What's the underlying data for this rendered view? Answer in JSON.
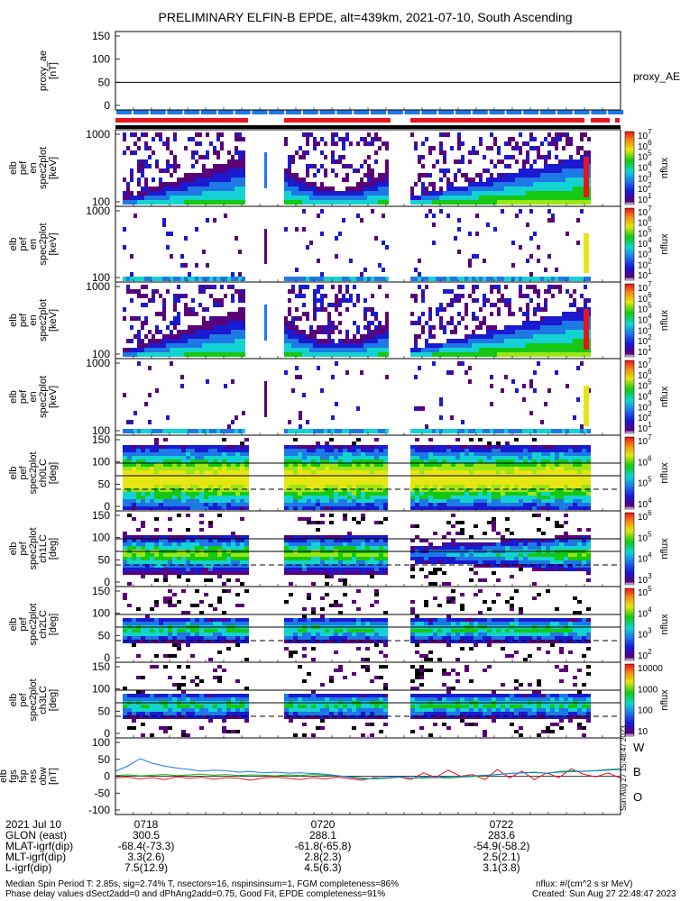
{
  "title": "PRELIMINARY ELFIN-B EPDE, alt=439km, 2021-07-10, South Ascending",
  "colors": {
    "red": "#e8141c",
    "blue": "#1e78e6",
    "green": "#14b414",
    "black": "#000000"
  },
  "panels": [
    {
      "id": "proxy_ae",
      "ylabel": [
        "proxy_ae",
        "[nT]"
      ],
      "yticks": [
        "150",
        "100",
        "50",
        "0"
      ],
      "side_label": "proxy_AE",
      "ref_line": 50
    },
    {
      "id": "en0",
      "ylabel": [
        "elb",
        "pef",
        "en",
        "spec2plot",
        "[keV]"
      ],
      "yticks": [
        "1000",
        "100"
      ],
      "cb_label": "nflux",
      "cb_ticks": [
        "10^7",
        "10^6",
        "10^5",
        "10^4",
        "10^3",
        "10^2",
        "10^1"
      ]
    },
    {
      "id": "en1",
      "ylabel": [
        "elb",
        "pef",
        "en",
        "spec2plot",
        "[keV]"
      ],
      "yticks": [
        "1000",
        "100"
      ],
      "cb_label": "nflux",
      "cb_ticks": [
        "10^7",
        "10^6",
        "10^5",
        "10^4",
        "10^3",
        "10^2",
        "10^1"
      ]
    },
    {
      "id": "en2",
      "ylabel": [
        "elb",
        "pef",
        "en",
        "spec2plot",
        "[keV]"
      ],
      "yticks": [
        "1000",
        "100"
      ],
      "cb_label": "nflux",
      "cb_ticks": [
        "10^7",
        "10^6",
        "10^5",
        "10^4",
        "10^3",
        "10^2",
        "10^1"
      ]
    },
    {
      "id": "en3",
      "ylabel": [
        "elb",
        "pef",
        "en",
        "spec2plot",
        "[keV]"
      ],
      "yticks": [
        "1000",
        "100"
      ],
      "cb_label": "nflux",
      "cb_ticks": [
        "10^7",
        "10^6",
        "10^5",
        "10^4",
        "10^3",
        "10^2",
        "10^1"
      ]
    },
    {
      "id": "pa0",
      "ylabel": [
        "elb",
        "pef",
        "spec2plot",
        "ch0LC",
        "[deg]"
      ],
      "yticks": [
        "150",
        "100",
        "50",
        "0"
      ],
      "cb_label": "nflux",
      "cb_ticks": [
        "10^7",
        "10^6",
        "10^5",
        "10^4"
      ]
    },
    {
      "id": "pa1",
      "ylabel": [
        "elb",
        "pef",
        "spec2plot",
        "ch1LC",
        "[deg]"
      ],
      "yticks": [
        "150",
        "100",
        "50",
        "0"
      ],
      "cb_label": "nflux",
      "cb_ticks": [
        "10^6",
        "10^5",
        "10^4",
        "10^3"
      ]
    },
    {
      "id": "pa2",
      "ylabel": [
        "elb",
        "pef",
        "spec2plot",
        "ch2LC",
        "[deg]"
      ],
      "yticks": [
        "150",
        "100",
        "50",
        "0"
      ],
      "cb_label": "nflux",
      "cb_ticks": [
        "10^5",
        "10^4",
        "10^3",
        "10^2"
      ]
    },
    {
      "id": "pa3",
      "ylabel": [
        "elb",
        "pef",
        "spec2plot",
        "ch3LC",
        "[deg]"
      ],
      "yticks": [
        "150",
        "100",
        "50",
        "0"
      ],
      "cb_label": "nflux",
      "cb_ticks": [
        "10000",
        "1000",
        "100",
        "10"
      ]
    },
    {
      "id": "res",
      "ylabel": [
        "elb",
        "fgs",
        "fsp",
        "res",
        "obw",
        "[nT]"
      ],
      "yticks": [
        "100",
        "50",
        "0",
        "-50",
        "-100"
      ],
      "legend": [
        "W",
        "B",
        "O"
      ]
    }
  ],
  "sidebar_stamp": "Sun Aug 27 15:48:47 2023",
  "ephemeris": {
    "rows": [
      [
        "2021 Jul 10",
        "0718",
        "0720",
        "0722"
      ],
      [
        "GLON (east)",
        "300.5",
        "288.1",
        "283.6"
      ],
      [
        "MLAT-igrf(dip)",
        "-68.4(-73.3)",
        "-61.8(-65.8)",
        "-54.9(-58.2)"
      ],
      [
        "MLT-igrf(dip)",
        "3.3(2.6)",
        "2.8(2.3)",
        "2.5(2.1)"
      ],
      [
        "L-igrf(dip)",
        "7.5(12.9)",
        "4.5(6.3)",
        "3.1(3.8)"
      ]
    ]
  },
  "footnotes": {
    "line1": "Median Spin Period T: 2.85s, sig=2.74% T, nsectors=16, nspinsinsum=1, FGM completeness=86%",
    "line2": "Phase delay values dSect2add=0 and dPhAng2add=0.75, Good Fit, EPDE completeness=91%",
    "units": "nflux: #/(cm^2 s sr MeV)",
    "created": "Created: Sun Aug 27 22:48:47 2023"
  },
  "chart_data": {
    "type": "heatmap",
    "title": "PRELIMINARY ELFIN-B EPDE, alt=439km, 2021-07-10, South Ascending",
    "xlabel": "2021 Jul 10",
    "x_ticks": [
      "0718",
      "0720",
      "0722"
    ],
    "proxy_ae": {
      "ylim": [
        0,
        150
      ],
      "ref_value": 50
    },
    "energy_range_keV": [
      60,
      7000
    ],
    "pitch_angle_range_deg": [
      0,
      180
    ],
    "res_obw": {
      "ylim": [
        -100,
        100
      ],
      "series": [
        {
          "name": "W",
          "color": "#e8141c",
          "values": [
            -5,
            -3,
            -8,
            -4,
            -10,
            -2,
            -6,
            -3,
            -9,
            -4,
            -6,
            -12,
            -5,
            -3,
            -6,
            -10,
            -4,
            -8,
            -3,
            -7,
            -12,
            -4,
            -6,
            -2,
            -10,
            10,
            -4,
            18,
            0,
            5,
            -10,
            20,
            -5,
            15,
            -10,
            10,
            -4,
            22,
            6,
            -2,
            10,
            -6
          ]
        },
        {
          "name": "B",
          "color": "#14b414",
          "values": [
            2,
            4,
            1,
            3,
            5,
            2,
            4,
            6,
            3,
            5,
            2,
            4,
            3,
            1,
            4,
            2,
            5,
            3,
            1,
            -2,
            -5,
            -8,
            -6,
            -3,
            -5,
            -6,
            -4,
            -6,
            -3,
            -1,
            2,
            5,
            8,
            10,
            12,
            9,
            14,
            16,
            14,
            17,
            20,
            22
          ]
        },
        {
          "name": "O",
          "color": "#1e78e6",
          "values": [
            15,
            30,
            52,
            38,
            30,
            24,
            20,
            15,
            18,
            16,
            12,
            14,
            10,
            12,
            9,
            10,
            8,
            6,
            2,
            -3,
            -8,
            -6,
            -4,
            -2,
            -5,
            -3,
            -4,
            -2,
            -1,
            1,
            3,
            5,
            8,
            10,
            11,
            9,
            12,
            13,
            15,
            16,
            18,
            20
          ]
        }
      ]
    }
  }
}
